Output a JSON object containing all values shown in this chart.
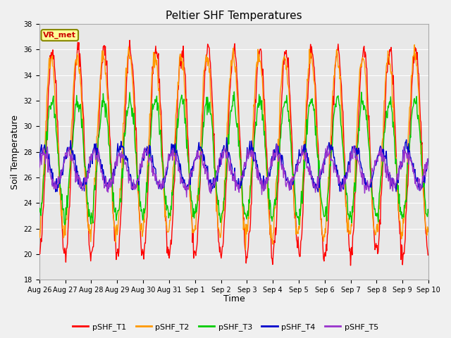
{
  "title": "Peltier SHF Temperatures",
  "ylabel": "Soil Temperature",
  "xlabel": "Time",
  "ylim": [
    18,
    38
  ],
  "yticks": [
    18,
    20,
    22,
    24,
    26,
    28,
    30,
    32,
    34,
    36,
    38
  ],
  "annotation": "VR_met",
  "annotation_color": "#cc0000",
  "annotation_bg": "#ffff99",
  "annotation_border": "#888800",
  "series_colors": {
    "pSHF_T1": "#ff0000",
    "pSHF_T2": "#ff9900",
    "pSHF_T3": "#00cc00",
    "pSHF_T4": "#0000cc",
    "pSHF_T5": "#9933cc"
  },
  "bg_color": "#e8e8e8",
  "grid_color": "#ffffff",
  "fig_bg_color": "#f0f0f0",
  "xtick_labels": [
    "Aug 26",
    "Aug 27",
    "Aug 28",
    "Aug 29",
    "Aug 30",
    "Aug 31",
    "Sep 1",
    "Sep 2",
    "Sep 3",
    "Sep 4",
    "Sep 5",
    "Sep 6",
    "Sep 7",
    "Sep 8",
    "Sep 9",
    "Sep 10"
  ],
  "xtick_positions": [
    0,
    1,
    2,
    3,
    4,
    5,
    6,
    7,
    8,
    9,
    10,
    11,
    12,
    13,
    14,
    15
  ],
  "lw": 1.0,
  "title_fontsize": 11,
  "label_fontsize": 9,
  "tick_fontsize": 7,
  "legend_fontsize": 8
}
